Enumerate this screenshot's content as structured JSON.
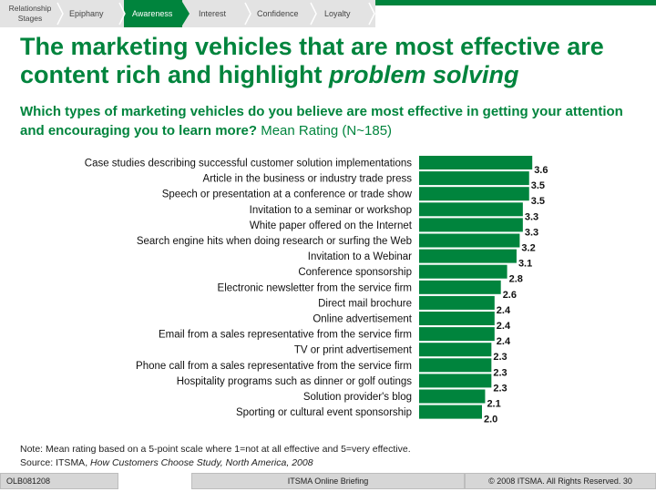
{
  "nav": {
    "items": [
      {
        "label": "Relationship Stages",
        "active": false
      },
      {
        "label": "Epiphany",
        "active": false
      },
      {
        "label": "Awareness",
        "active": true
      },
      {
        "label": "Interest",
        "active": false
      },
      {
        "label": "Confidence",
        "active": false
      },
      {
        "label": "Loyalty",
        "active": false
      }
    ]
  },
  "title": {
    "line1": "The marketing vehicles that are most effective are",
    "line2_start": "content rich and highlight ",
    "line2_em": "problem solving"
  },
  "subtitle": {
    "question": "Which types of marketing vehicles do you believe are most effective in getting your attention and encouraging you to learn more?",
    "suffix": " Mean Rating (N~185)"
  },
  "chart_data": {
    "type": "bar",
    "orientation": "horizontal",
    "categories": [
      "Case studies describing successful customer solution implementations",
      "Article in the business or industry trade press",
      "Speech or presentation at a conference or trade show",
      "Invitation to a seminar or workshop",
      "White paper offered on the Internet",
      "Search engine hits when doing research or surfing the Web",
      "Invitation to a Webinar",
      "Conference sponsorship",
      "Electronic newsletter from the service firm",
      "Direct mail brochure",
      "Online advertisement",
      "Email from a sales representative from the service firm",
      "TV or print advertisement",
      "Phone call from a sales representative from the service firm",
      "Hospitality programs such as dinner or golf outings",
      "Solution provider's blog",
      "Sporting or cultural event sponsorship"
    ],
    "values": [
      3.6,
      3.5,
      3.5,
      3.3,
      3.3,
      3.2,
      3.1,
      2.8,
      2.6,
      2.4,
      2.4,
      2.4,
      2.3,
      2.3,
      2.3,
      2.1,
      2.0
    ],
    "value_labels": [
      "3.6",
      "3.5",
      "3.5",
      "3.3",
      "3.3",
      "3.2",
      "3.1",
      "2.8",
      "2.6",
      "2.4",
      "2.4",
      "2.4",
      "2.3",
      "2.3",
      "2.3",
      "2.1",
      "2.0"
    ],
    "xlim": [
      0,
      5
    ],
    "color": "#00843d"
  },
  "note": {
    "line1": "Note: Mean rating based on a 5-point scale where 1=not at all effective and 5=very effective.",
    "source_prefix": "Source: ITSMA, ",
    "source_em": "How Customers Choose Study, North America, 2008"
  },
  "footer": {
    "code": "OLB081208",
    "center": "ITSMA Online Briefing",
    "right": "© 2008 ITSMA. All Rights Reserved. 30"
  }
}
